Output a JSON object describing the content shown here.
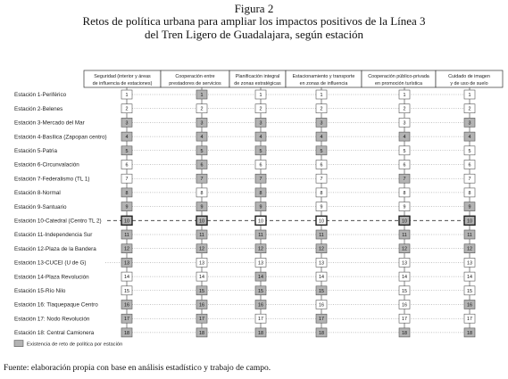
{
  "figure": {
    "label": "Figura 2",
    "title_line1": "Retos de política urbana para ampliar los impactos positivos de la Línea 3",
    "title_line2": "del Tren Ligero de Guadalajara, según estación",
    "source": "Fuente: elaboración propia con base en análisis estadístico y trabajo de campo."
  },
  "colors": {
    "shaded": "#b3b3b3",
    "unshaded": "#ffffff",
    "border": "#555555",
    "dotted_line": "#888888"
  },
  "columns": [
    {
      "line1": "Seguridad (interior y áreas",
      "line2": "de influencia de estaciones)"
    },
    {
      "line1": "Cooperación entre",
      "line2": "prestadores de servicios"
    },
    {
      "line1": "Planificación integral",
      "line2": "de zonas estratégicas"
    },
    {
      "line1": "Estacionamiento y transporte",
      "line2": "en zonas de influencia"
    },
    {
      "line1": "Cooperación público-privada",
      "line2": "en promoción turística"
    },
    {
      "line1": "Cuidado de imagen",
      "line2": "y de uso de suelo"
    }
  ],
  "stations": [
    "Estación 1-Periférico",
    "Estación 2-Belenes",
    "Estación 3-Mercado del Mar",
    "Estación 4-Basílica (Zapopan centro)",
    "Estación 5-Patria",
    "Estación 6-Circunvalación",
    "Estación 7-Federalismo (TL 1)",
    "Estación 8-Normal",
    "Estación 9-Santuario",
    "Estación 10-Catedral (Centro TL 2)",
    "Estación 11-Independencia Sur",
    "Estación 12-Plaza de la Bandera",
    "Estación 13-CUCEI (U de G)",
    "Estación 14-Plaza Revolución",
    "Estación 15-Río Nilo",
    "Estación 16: Tlaquepaque Centro",
    "Estación 17: Nodo Revolución",
    "Estación 18: Central Camionera"
  ],
  "challenge_matrix": [
    [
      0,
      1,
      0,
      0,
      0,
      0
    ],
    [
      0,
      0,
      0,
      0,
      0,
      0
    ],
    [
      1,
      1,
      1,
      1,
      0,
      1
    ],
    [
      1,
      1,
      1,
      1,
      1,
      1
    ],
    [
      1,
      1,
      1,
      1,
      0,
      0
    ],
    [
      0,
      1,
      0,
      0,
      0,
      0
    ],
    [
      0,
      1,
      1,
      0,
      1,
      0
    ],
    [
      1,
      0,
      1,
      0,
      0,
      0
    ],
    [
      1,
      1,
      1,
      0,
      0,
      1
    ],
    [
      1,
      1,
      0,
      0,
      1,
      1
    ],
    [
      1,
      1,
      1,
      1,
      1,
      1
    ],
    [
      1,
      1,
      1,
      1,
      1,
      1
    ],
    [
      1,
      0,
      0,
      0,
      0,
      0
    ],
    [
      0,
      0,
      1,
      0,
      0,
      0
    ],
    [
      0,
      1,
      1,
      1,
      0,
      0
    ],
    [
      1,
      1,
      1,
      0,
      0,
      1
    ],
    [
      1,
      1,
      0,
      1,
      0,
      0
    ],
    [
      1,
      1,
      1,
      1,
      1,
      1
    ]
  ],
  "emphasized_station": 10,
  "legend": {
    "text": "Existencia de reto de política por estación"
  }
}
